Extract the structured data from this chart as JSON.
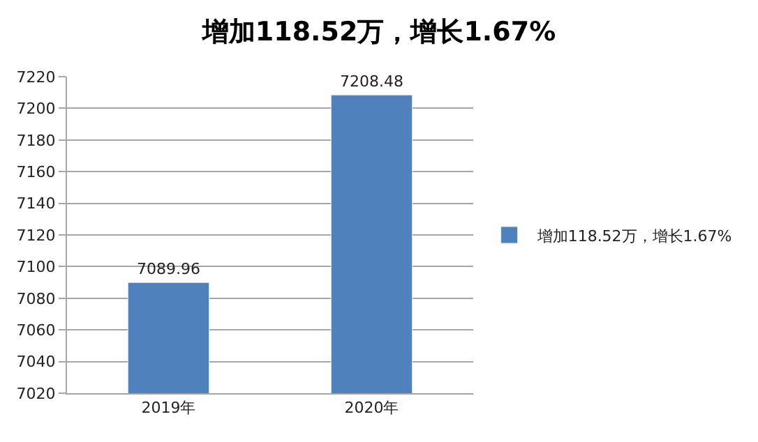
{
  "chart_data": {
    "type": "bar",
    "title": "增加118.52万，增长1.67%",
    "categories": [
      "2019年",
      "2020年"
    ],
    "series": [
      {
        "name": "增加118.52万，增长1.67%",
        "color": "#4f81bd",
        "values": [
          7089.96,
          7208.48
        ]
      }
    ],
    "ylim": [
      7020,
      7220
    ],
    "yticks": [
      7020,
      7040,
      7060,
      7080,
      7100,
      7120,
      7140,
      7160,
      7180,
      7200,
      7220
    ],
    "grid": "y",
    "legend": "right",
    "data_labels": true
  }
}
